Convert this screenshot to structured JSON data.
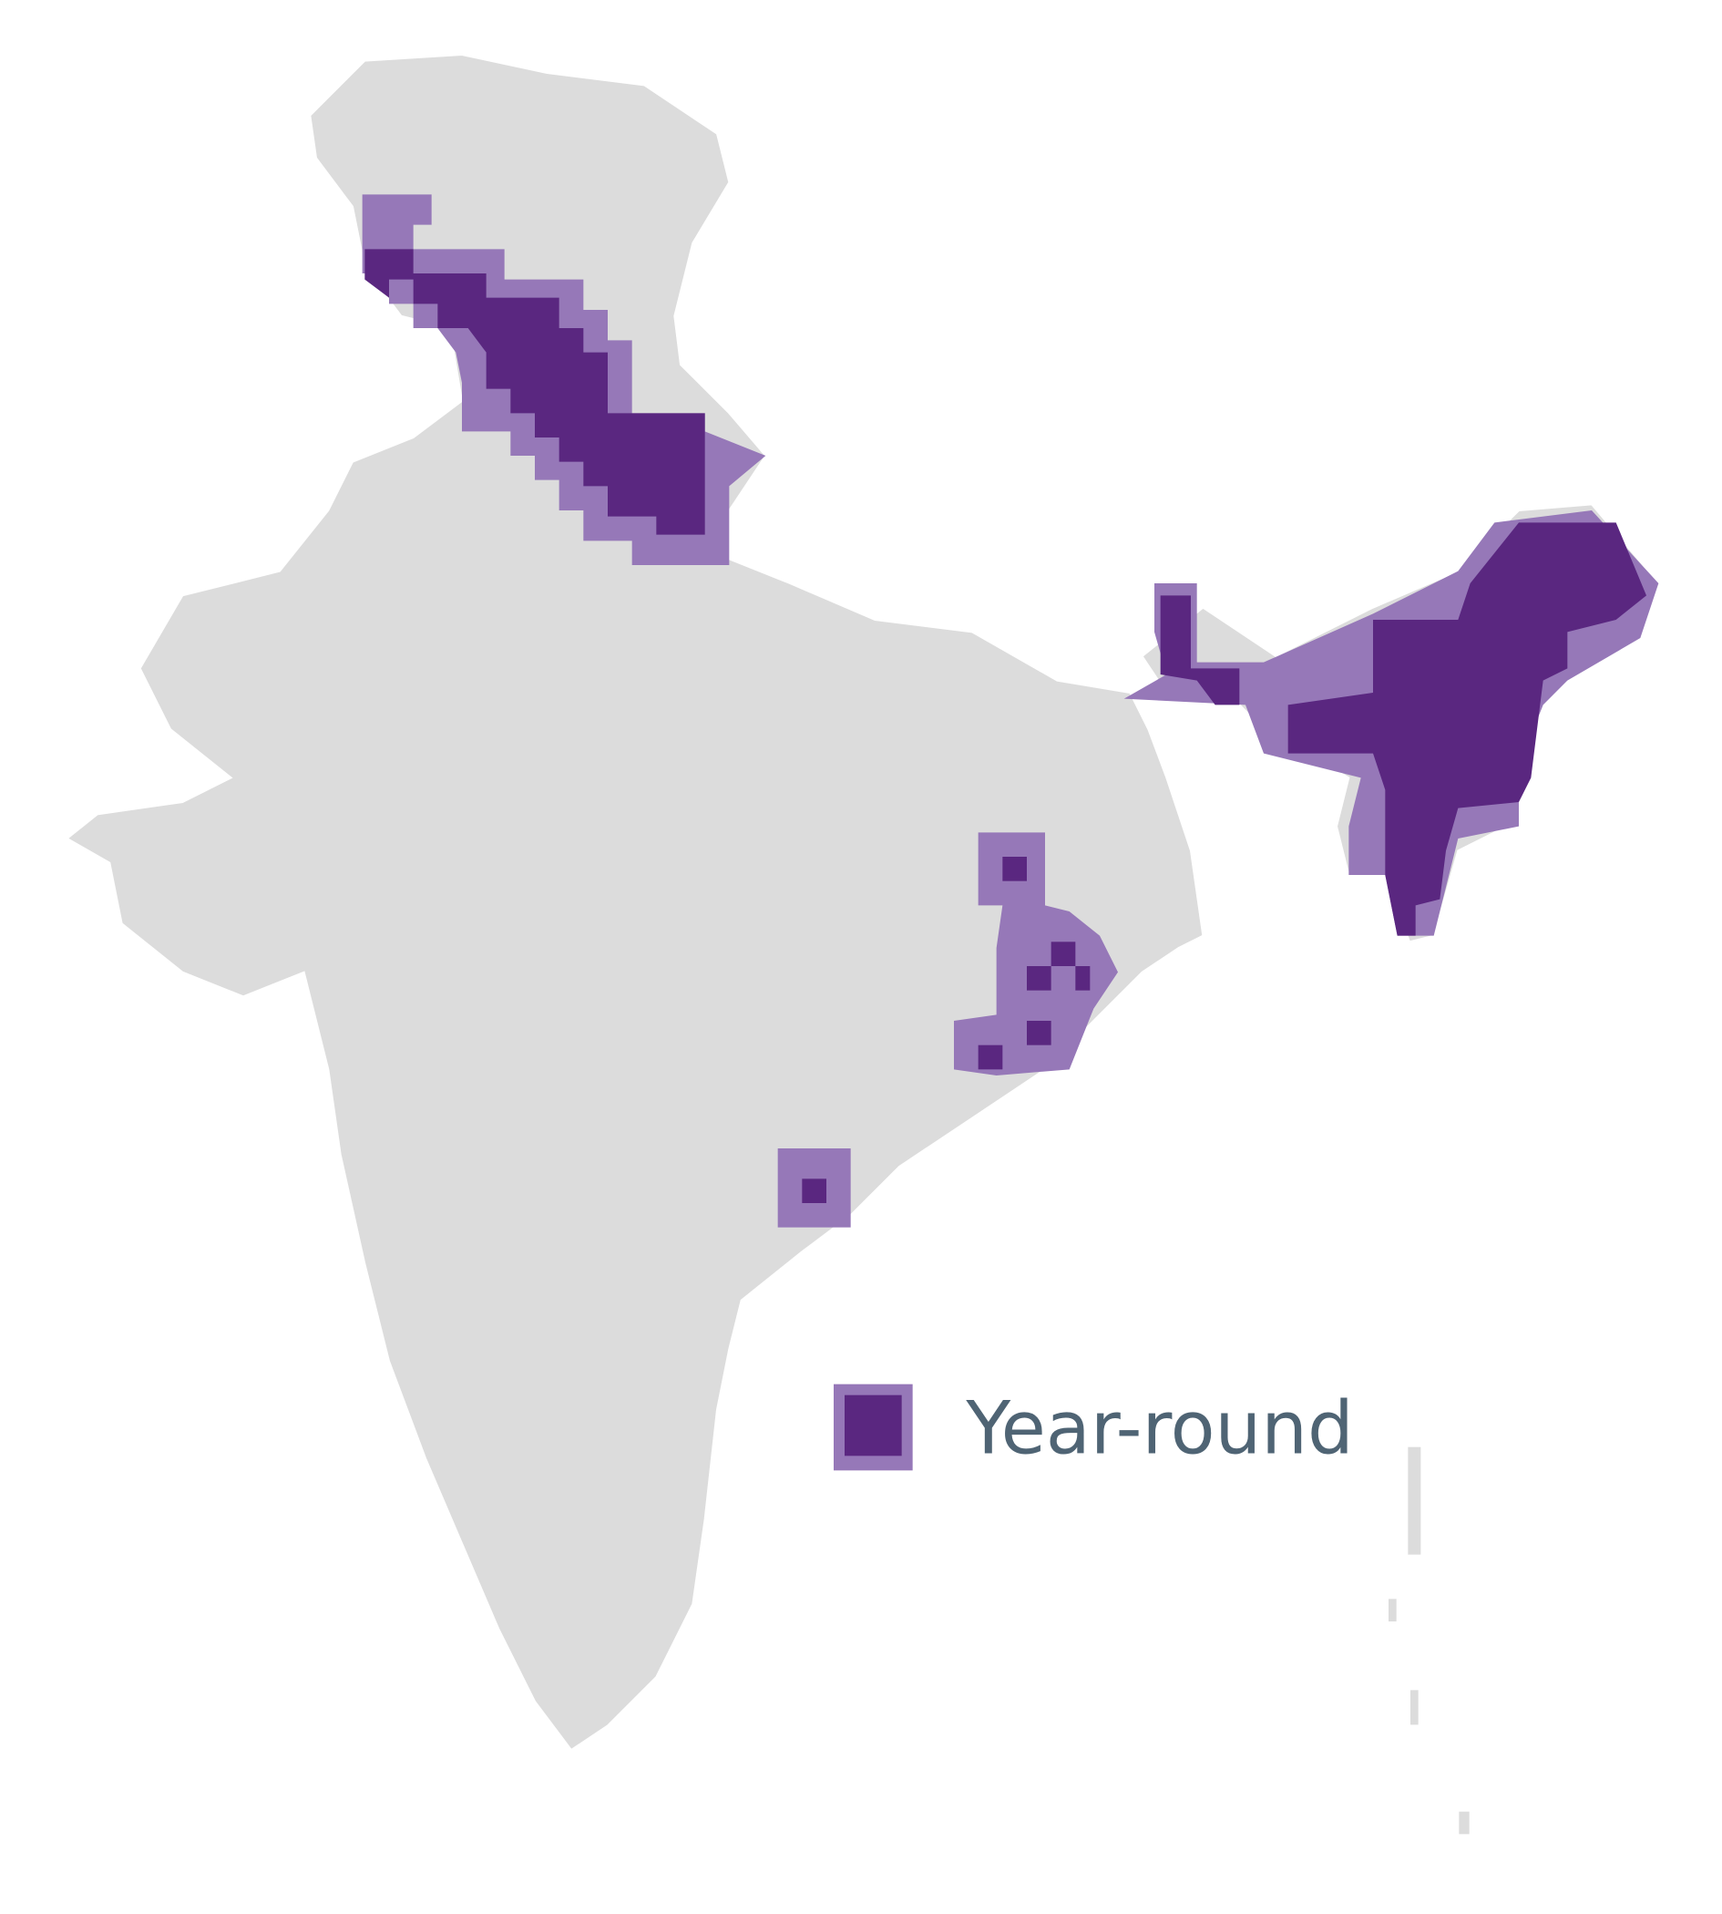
{
  "legend": {
    "label": "Year-round"
  }
}
